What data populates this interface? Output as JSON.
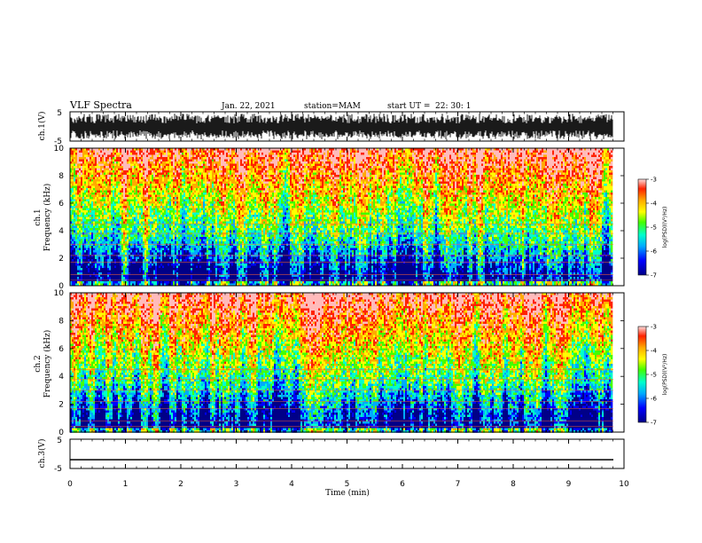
{
  "header": {
    "title": "VLF Spectra",
    "date": "Jan. 22, 2021",
    "station": "station=MAM",
    "start_label": "start  UT  =",
    "start_time": "22: 30: 1"
  },
  "chart_data": [
    {
      "type": "line",
      "panel": "ch1-waveform",
      "ylabel": "ch.1(V)",
      "ylim": [
        -5,
        5
      ],
      "yticks": [
        "5",
        "-5"
      ],
      "xlim": [
        0,
        10
      ],
      "content": "dense impulsive signal spanning full range"
    },
    {
      "type": "heatmap",
      "panel": "ch1-spectrogram",
      "ylabel_line1": "ch.1",
      "ylabel_line2": "Frequency (kHz)",
      "ylim": [
        0,
        10
      ],
      "yticks": [
        "0",
        "2",
        "4",
        "6",
        "8",
        "10"
      ],
      "xlim": [
        0,
        10
      ],
      "colorbar": {
        "label": "log(PSD)(V²/Hz)",
        "range": [
          -7,
          -3
        ],
        "ticks": [
          "-3",
          "-4",
          "-5",
          "-6",
          "-7"
        ]
      },
      "seed": 11
    },
    {
      "type": "heatmap",
      "panel": "ch2-spectrogram",
      "ylabel_line1": "ch.2",
      "ylabel_line2": "Frequency (kHz)",
      "ylim": [
        0,
        10
      ],
      "yticks": [
        "0",
        "2",
        "4",
        "6",
        "8",
        "10"
      ],
      "xlim": [
        0,
        10
      ],
      "colorbar": {
        "label": "log(PSD)(V²/Hz)",
        "range": [
          -7,
          -3
        ],
        "ticks": [
          "-3",
          "-4",
          "-5",
          "-6",
          "-7"
        ]
      },
      "seed": 29
    },
    {
      "type": "line",
      "panel": "ch3-waveform",
      "ylabel": "ch.3(V)",
      "ylim": [
        -5,
        5
      ],
      "yticks": [
        "5",
        "-5"
      ],
      "xlim": [
        0,
        10
      ],
      "level": -2
    }
  ],
  "xaxis": {
    "label": "Time (min)",
    "ticks": [
      "0",
      "1",
      "2",
      "3",
      "4",
      "5",
      "6",
      "7",
      "8",
      "9",
      "10"
    ]
  },
  "colormap": [
    "#000088",
    "#0000ff",
    "#00aaff",
    "#00ffcc",
    "#44ff00",
    "#ffff00",
    "#ffaa00",
    "#ff2200",
    "#ffbbbb"
  ]
}
